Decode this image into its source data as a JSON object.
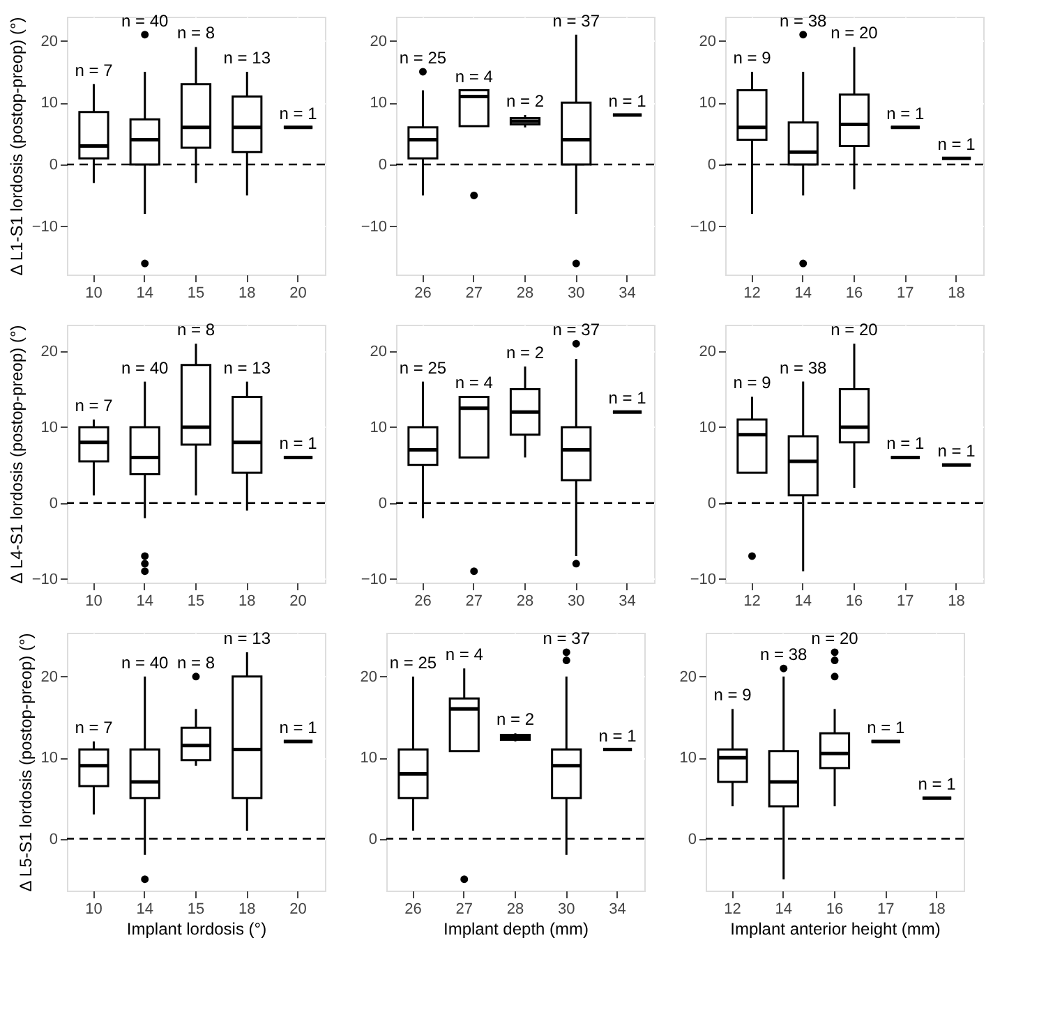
{
  "chart_data": [
    {
      "type": "box",
      "ylabel": "Δ L1-S1 lordosis (postop-preop) (°)",
      "categories": [
        "10",
        "14",
        "15",
        "18",
        "20"
      ],
      "ylim": [
        -17.8,
        23.9
      ],
      "yticks": [
        -10,
        0,
        10,
        20
      ],
      "grid": true,
      "boxes": [
        {
          "low": -3,
          "q1": 1,
          "median": 3,
          "q3": 8.5,
          "high": 13
        },
        {
          "low": -8,
          "q1": 0,
          "median": 4,
          "q3": 7.3,
          "high": 15,
          "outliers": [
            21,
            -16
          ]
        },
        {
          "low": -3,
          "q1": 2.7,
          "median": 6,
          "q3": 13,
          "high": 19
        },
        {
          "low": -5,
          "q1": 2,
          "median": 6,
          "q3": 11,
          "high": 15
        },
        {
          "low": 6,
          "q1": 6,
          "median": 6,
          "q3": 6,
          "high": 6
        }
      ],
      "ref_lines": [
        {
          "axis": "y",
          "value": 0,
          "line_style": "dashed"
        }
      ],
      "annotations": [
        {
          "text": "n = 7",
          "x": "10",
          "y": 13
        },
        {
          "text": "n = 40",
          "x": "14",
          "y": 15
        },
        {
          "text": "n = 8",
          "x": "15",
          "y": 19
        },
        {
          "text": "n = 13",
          "x": "18",
          "y": 15
        },
        {
          "text": "n = 1",
          "x": "20",
          "y": 6
        }
      ]
    },
    {
      "type": "box",
      "categories": [
        "26",
        "27",
        "28",
        "30",
        "34"
      ],
      "ylim": [
        -17.8,
        23.9
      ],
      "yticks": [
        -10,
        0,
        10,
        20
      ],
      "grid": true,
      "boxes": [
        {
          "low": -5,
          "q1": 1,
          "median": 4,
          "q3": 6,
          "high": 12,
          "outliers": [
            15
          ]
        },
        {
          "low": 6.2,
          "q1": 6.2,
          "median": 11,
          "q3": 12,
          "high": 12,
          "outliers": [
            -5
          ]
        },
        {
          "low": 6,
          "q1": 6.5,
          "median": 7,
          "q3": 7.5,
          "high": 8
        },
        {
          "low": -8,
          "q1": 0,
          "median": 4,
          "q3": 10,
          "high": 21,
          "outliers": [
            -16
          ]
        },
        {
          "low": 8,
          "q1": 8,
          "median": 8,
          "q3": 8,
          "high": 8
        }
      ],
      "ref_lines": [
        {
          "axis": "y",
          "value": 0,
          "line_style": "dashed"
        }
      ],
      "annotations": [
        {
          "text": "n = 25",
          "x": "26",
          "y": 12
        },
        {
          "text": "n = 4",
          "x": "27",
          "y": 12
        },
        {
          "text": "n = 2",
          "x": "28",
          "y": 8
        },
        {
          "text": "n = 37",
          "x": "30",
          "y": 21
        },
        {
          "text": "n = 1",
          "x": "34",
          "y": 8
        }
      ]
    },
    {
      "type": "box",
      "categories": [
        "12",
        "14",
        "16",
        "17",
        "18"
      ],
      "ylim": [
        -17.8,
        23.9
      ],
      "yticks": [
        -10,
        0,
        10,
        20
      ],
      "grid": true,
      "boxes": [
        {
          "low": -8,
          "q1": 4,
          "median": 6,
          "q3": 12,
          "high": 15
        },
        {
          "low": -5,
          "q1": 0,
          "median": 2,
          "q3": 6.8,
          "high": 15,
          "outliers": [
            21,
            -16
          ]
        },
        {
          "low": -4,
          "q1": 3,
          "median": 6.5,
          "q3": 11.3,
          "high": 19
        },
        {
          "low": 6,
          "q1": 6,
          "median": 6,
          "q3": 6,
          "high": 6
        },
        {
          "low": 1,
          "q1": 1,
          "median": 1,
          "q3": 1,
          "high": 1
        }
      ],
      "ref_lines": [
        {
          "axis": "y",
          "value": 0,
          "line_style": "dashed"
        }
      ],
      "annotations": [
        {
          "text": "n = 9",
          "x": "12",
          "y": 15
        },
        {
          "text": "n = 38",
          "x": "14",
          "y": 15
        },
        {
          "text": "n = 20",
          "x": "16",
          "y": 19
        },
        {
          "text": "n = 1",
          "x": "17",
          "y": 6
        },
        {
          "text": "n = 1",
          "x": "18",
          "y": 1
        }
      ]
    },
    {
      "type": "box",
      "ylabel": "Δ L4-S1 lordosis (postop-preop) (°)",
      "categories": [
        "10",
        "14",
        "15",
        "18",
        "20"
      ],
      "ylim": [
        -10.5,
        23.5
      ],
      "yticks": [
        -10,
        0,
        10,
        20
      ],
      "grid": true,
      "boxes": [
        {
          "low": 1,
          "q1": 5.5,
          "median": 8,
          "q3": 10,
          "high": 11
        },
        {
          "low": -2,
          "q1": 3.8,
          "median": 6,
          "q3": 10,
          "high": 16,
          "outliers": [
            -7,
            -8,
            -9
          ]
        },
        {
          "low": 1,
          "q1": 7.7,
          "median": 10,
          "q3": 18.2,
          "high": 21
        },
        {
          "low": -1,
          "q1": 4,
          "median": 8,
          "q3": 14,
          "high": 16
        },
        {
          "low": 6,
          "q1": 6,
          "median": 6,
          "q3": 6,
          "high": 6
        }
      ],
      "ref_lines": [
        {
          "axis": "y",
          "value": 0,
          "line_style": "dashed"
        }
      ],
      "annotations": [
        {
          "text": "n = 7",
          "x": "10",
          "y": 11
        },
        {
          "text": "n = 40",
          "x": "14",
          "y": 16
        },
        {
          "text": "n = 8",
          "x": "15",
          "y": 21
        },
        {
          "text": "n = 13",
          "x": "18",
          "y": 16
        },
        {
          "text": "n = 1",
          "x": "20",
          "y": 6
        }
      ]
    },
    {
      "type": "box",
      "categories": [
        "26",
        "27",
        "28",
        "30",
        "34"
      ],
      "ylim": [
        -10.5,
        23.5
      ],
      "yticks": [
        -10,
        0,
        10,
        20
      ],
      "grid": true,
      "boxes": [
        {
          "low": -2,
          "q1": 5,
          "median": 7,
          "q3": 10,
          "high": 16
        },
        {
          "low": 6,
          "q1": 6,
          "median": 12.5,
          "q3": 14,
          "high": 14,
          "outliers": [
            -9
          ]
        },
        {
          "low": 6,
          "q1": 9,
          "median": 12,
          "q3": 15,
          "high": 18
        },
        {
          "low": -7,
          "q1": 3,
          "median": 7,
          "q3": 10,
          "high": 19,
          "outliers": [
            21,
            -8
          ]
        },
        {
          "low": 12,
          "q1": 12,
          "median": 12,
          "q3": 12,
          "high": 12
        }
      ],
      "ref_lines": [
        {
          "axis": "y",
          "value": 0,
          "line_style": "dashed"
        }
      ],
      "annotations": [
        {
          "text": "n = 25",
          "x": "26",
          "y": 16
        },
        {
          "text": "n = 4",
          "x": "27",
          "y": 14
        },
        {
          "text": "n = 2",
          "x": "28",
          "y": 18
        },
        {
          "text": "n = 37",
          "x": "30",
          "y": 19
        },
        {
          "text": "n = 1",
          "x": "34",
          "y": 12
        }
      ]
    },
    {
      "type": "box",
      "categories": [
        "12",
        "14",
        "16",
        "17",
        "18"
      ],
      "ylim": [
        -10.5,
        23.5
      ],
      "yticks": [
        -10,
        0,
        10,
        20
      ],
      "grid": true,
      "boxes": [
        {
          "low": 4,
          "q1": 4,
          "median": 9,
          "q3": 11,
          "high": 14,
          "outliers": [
            -7
          ]
        },
        {
          "low": -9,
          "q1": 1,
          "median": 5.5,
          "q3": 8.8,
          "high": 16
        },
        {
          "low": 2,
          "q1": 8,
          "median": 10,
          "q3": 15,
          "high": 21
        },
        {
          "low": 6,
          "q1": 6,
          "median": 6,
          "q3": 6,
          "high": 6
        },
        {
          "low": 5,
          "q1": 5,
          "median": 5,
          "q3": 5,
          "high": 5
        }
      ],
      "ref_lines": [
        {
          "axis": "y",
          "value": 0,
          "line_style": "dashed"
        }
      ],
      "annotations": [
        {
          "text": "n = 9",
          "x": "12",
          "y": 14
        },
        {
          "text": "n = 38",
          "x": "14",
          "y": 16
        },
        {
          "text": "n = 20",
          "x": "16",
          "y": 21
        },
        {
          "text": "n = 1",
          "x": "17",
          "y": 6
        },
        {
          "text": "n = 1",
          "x": "18",
          "y": 5
        }
      ]
    },
    {
      "type": "box",
      "xlabel": "Implant lordosis (°)",
      "ylabel": "Δ L5-S1 lordosis (postop-preop) (°)",
      "categories": [
        "10",
        "14",
        "15",
        "18",
        "20"
      ],
      "ylim": [
        -6.4,
        25.4
      ],
      "yticks": [
        0,
        10,
        20
      ],
      "grid": true,
      "boxes": [
        {
          "low": 3,
          "q1": 6.5,
          "median": 9,
          "q3": 11,
          "high": 12
        },
        {
          "low": -2,
          "q1": 5,
          "median": 7,
          "q3": 11,
          "high": 20,
          "outliers": [
            -5
          ]
        },
        {
          "low": 9,
          "q1": 9.7,
          "median": 11.5,
          "q3": 13.7,
          "high": 16,
          "outliers": [
            20
          ]
        },
        {
          "low": 1,
          "q1": 5,
          "median": 11,
          "q3": 20,
          "high": 23
        },
        {
          "low": 12,
          "q1": 12,
          "median": 12,
          "q3": 12,
          "high": 12
        }
      ],
      "ref_lines": [
        {
          "axis": "y",
          "value": 0,
          "line_style": "dashed"
        }
      ],
      "annotations": [
        {
          "text": "n = 7",
          "x": "10",
          "y": 12
        },
        {
          "text": "n = 40",
          "x": "14",
          "y": 20
        },
        {
          "text": "n = 8",
          "x": "15",
          "y": 16
        },
        {
          "text": "n = 13",
          "x": "18",
          "y": 23
        },
        {
          "text": "n = 1",
          "x": "20",
          "y": 12
        }
      ]
    },
    {
      "type": "box",
      "xlabel": "Implant depth (mm)",
      "categories": [
        "26",
        "27",
        "28",
        "30",
        "34"
      ],
      "ylim": [
        -6.4,
        25.4
      ],
      "yticks": [
        0,
        10,
        20
      ],
      "grid": true,
      "boxes": [
        {
          "low": 1,
          "q1": 5,
          "median": 8,
          "q3": 11,
          "high": 20
        },
        {
          "low": 10.8,
          "q1": 10.8,
          "median": 16,
          "q3": 17.3,
          "high": 21,
          "outliers": [
            -5
          ]
        },
        {
          "low": 12,
          "q1": 12.2,
          "median": 12.5,
          "q3": 12.8,
          "high": 13
        },
        {
          "low": -2,
          "q1": 5,
          "median": 9,
          "q3": 11,
          "high": 20,
          "outliers": [
            22,
            23
          ]
        },
        {
          "low": 11,
          "q1": 11,
          "median": 11,
          "q3": 11,
          "high": 11
        }
      ],
      "ref_lines": [
        {
          "axis": "y",
          "value": 0,
          "line_style": "dashed"
        }
      ],
      "annotations": [
        {
          "text": "n = 25",
          "x": "26",
          "y": 20
        },
        {
          "text": "n = 4",
          "x": "27",
          "y": 21
        },
        {
          "text": "n = 2",
          "x": "28",
          "y": 13
        },
        {
          "text": "n = 37",
          "x": "30",
          "y": 20
        },
        {
          "text": "n = 1",
          "x": "34",
          "y": 11
        }
      ]
    },
    {
      "type": "box",
      "xlabel": "Implant anterior height (mm)",
      "categories": [
        "12",
        "14",
        "16",
        "17",
        "18"
      ],
      "ylim": [
        -6.4,
        25.4
      ],
      "yticks": [
        0,
        10,
        20
      ],
      "grid": true,
      "boxes": [
        {
          "low": 4,
          "q1": 7,
          "median": 10,
          "q3": 11,
          "high": 16
        },
        {
          "low": -5,
          "q1": 4,
          "median": 7,
          "q3": 10.8,
          "high": 20,
          "outliers": [
            21
          ]
        },
        {
          "low": 4,
          "q1": 8.7,
          "median": 10.5,
          "q3": 13,
          "high": 16,
          "outliers": [
            20,
            22,
            23
          ]
        },
        {
          "low": 12,
          "q1": 12,
          "median": 12,
          "q3": 12,
          "high": 12
        },
        {
          "low": 5,
          "q1": 5,
          "median": 5,
          "q3": 5,
          "high": 5
        }
      ],
      "ref_lines": [
        {
          "axis": "y",
          "value": 0,
          "line_style": "dashed"
        }
      ],
      "annotations": [
        {
          "text": "n = 9",
          "x": "12",
          "y": 16
        },
        {
          "text": "n = 38",
          "x": "14",
          "y": 20
        },
        "n = 20",
        {
          "text": "n = 1",
          "x": "17",
          "y": 12
        },
        {
          "text": "n = 1",
          "x": "18",
          "y": 5
        }
      ]
    }
  ]
}
